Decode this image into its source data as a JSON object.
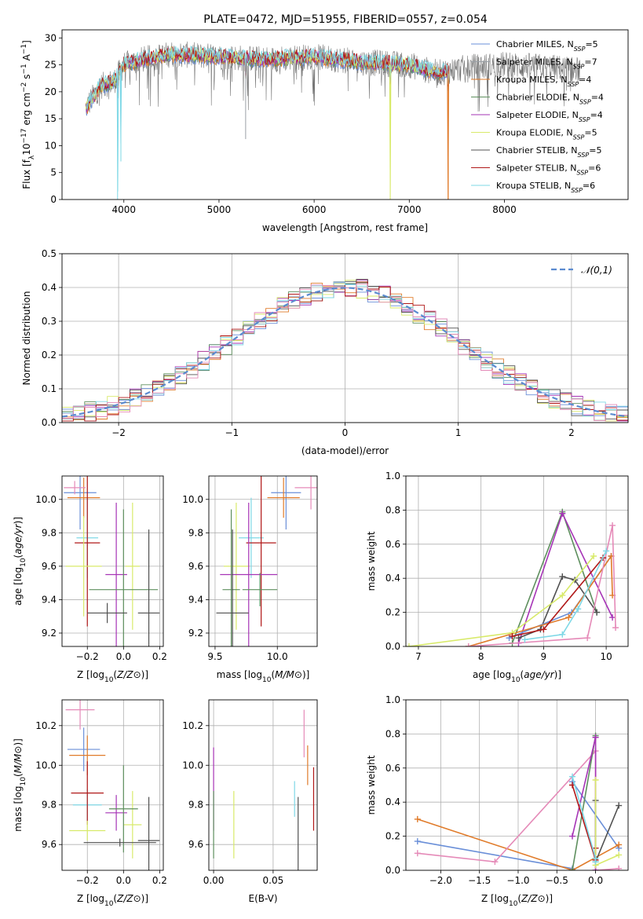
{
  "title": "PLATE=0472, MJD=51955, FIBERID=0557, z=0.054",
  "colors": {
    "Chabrier MILES": "#6a8fd8",
    "Salpeter MILES": "#9aa0a6",
    "Kroupa MILES": "#e07b2a",
    "Chabrier ELODIE": "#5e8f5e",
    "Salpeter ELODIE": "#a634b6",
    "Kroupa ELODIE": "#d8ea6a",
    "Chabrier STELIB": "#505050",
    "Salpeter STELIB": "#b01818",
    "Kroupa STELIB": "#7fd8e6",
    "pink": "#e58ab8",
    "normal": "#5b8bd0",
    "grid": "#b0b0b0"
  },
  "chart_data": [
    {
      "type": "line",
      "panel": "spectrum",
      "title": "PLATE=0472, MJD=51955, FIBERID=0557, z=0.054",
      "xlabel": "wavelength [Angstrom, rest frame]",
      "ylabel_parts": {
        "a": "Flux [f",
        "sub1": "λ",
        "b": "10",
        "sup1": "−17",
        "c": " erg cm",
        "sup2": "−2",
        "d": " s",
        "sup3": "−1",
        "e": " A",
        "sup4": "−1",
        "f": "]"
      },
      "xlim": [
        3350,
        9300
      ],
      "ylim": [
        0,
        31.5
      ],
      "xticks": [
        4000,
        5000,
        6000,
        7000,
        8000
      ],
      "yticks": [
        0,
        5,
        10,
        15,
        20,
        25,
        30
      ],
      "legend_position": "upper right",
      "legend": [
        {
          "name": "Chabrier MILES",
          "nssp": "5"
        },
        {
          "name": "Salpeter MILES",
          "nssp": "7"
        },
        {
          "name": "Kroupa MILES",
          "nssp": "4"
        },
        {
          "name": "Chabrier ELODIE",
          "nssp": "4"
        },
        {
          "name": "Salpeter ELODIE",
          "nssp": "4"
        },
        {
          "name": "Kroupa ELODIE",
          "nssp": "5"
        },
        {
          "name": "Chabrier STELIB",
          "nssp": "5"
        },
        {
          "name": "Salpeter STELIB",
          "nssp": "6"
        },
        {
          "name": "Kroupa STELIB",
          "nssp": "6"
        }
      ],
      "continuum": {
        "x": [
          3600,
          3750,
          3900,
          4000,
          4200,
          4500,
          5000,
          5500,
          6000,
          6500,
          7000,
          7300,
          7600,
          8000,
          8500,
          8800
        ],
        "y": [
          17,
          21,
          22,
          25,
          26,
          27,
          26.5,
          26,
          26.5,
          25.5,
          25,
          23.5,
          24.5,
          25,
          24.5,
          24
        ]
      },
      "model_range": [
        3600,
        7420
      ],
      "absorption_lines": [
        {
          "x": 3934,
          "depth": 22,
          "series": "Kroupa STELIB"
        },
        {
          "x": 3969,
          "depth": 14,
          "series": "Kroupa STELIB"
        },
        {
          "x": 5280,
          "depth": 12,
          "series": "Salpeter MILES"
        },
        {
          "x": 6800,
          "depth": 26,
          "series": "Kroupa ELODIE"
        },
        {
          "x": 7410,
          "depth": 24,
          "series": "Kroupa MILES"
        }
      ]
    },
    {
      "type": "line",
      "panel": "residual-histogram",
      "xlabel": "(data-model)/error",
      "ylabel": "Normed distribution",
      "xlim": [
        -2.5,
        2.5
      ],
      "ylim": [
        0,
        0.5
      ],
      "xticks": [
        -2,
        -1,
        0,
        1,
        2
      ],
      "yticks": [
        0.0,
        0.1,
        0.2,
        0.3,
        0.4,
        0.5
      ],
      "grid": true,
      "bin_width": 0.1,
      "reference": {
        "name": "𝒩(0,1)",
        "mean": 0,
        "sigma": 1
      },
      "legend_position": "upper right"
    },
    {
      "type": "scatter",
      "panel": "age-vs-Z",
      "xlabel": "Z [log10(Z/Z⊙)]",
      "ylabel": "age [log10(age/yr)]",
      "xlim": [
        -0.34,
        0.22
      ],
      "ylim": [
        9.12,
        10.14
      ],
      "xticks": [
        -0.2,
        0.0,
        0.2
      ],
      "yticks": [
        9.2,
        9.4,
        9.6,
        9.8,
        10.0
      ],
      "points": [
        {
          "s": "Chabrier MILES",
          "x": -0.24,
          "y": 10.04,
          "ex": 0.09,
          "ey": 0.22
        },
        {
          "s": "Kroupa MILES",
          "x": -0.22,
          "y": 10.01,
          "ex": 0.09,
          "ey": 0.12
        },
        {
          "s": "pink",
          "x": -0.27,
          "y": 10.07,
          "ex": 0.06,
          "ey": 0.04
        },
        {
          "s": "Kroupa STELIB",
          "x": -0.2,
          "y": 9.77,
          "ex": 0.06,
          "ey": 0.24
        },
        {
          "s": "Salpeter STELIB",
          "x": -0.2,
          "y": 9.74,
          "ex": 0.07,
          "ey": 0.5
        },
        {
          "s": "Kroupa ELODIE",
          "x": -0.22,
          "y": 9.6,
          "ex": 0.1,
          "ey": 0.3
        },
        {
          "s": "Kroupa ELODIE",
          "x": 0.05,
          "y": 9.6,
          "ex": 0.04,
          "ey": 0.38
        },
        {
          "s": "Salpeter ELODIE",
          "x": -0.04,
          "y": 9.55,
          "ex": 0.06,
          "ey": 0.43
        },
        {
          "s": "Chabrier ELODIE",
          "x": 0.0,
          "y": 9.46,
          "ex": 0.19,
          "ey": 0.48
        },
        {
          "s": "Chabrier STELIB",
          "x": 0.14,
          "y": 9.32,
          "ex": 0.06,
          "ey": 0.5
        },
        {
          "s": "Chabrier STELIB",
          "x": -0.09,
          "y": 9.32,
          "ex": 0.11,
          "ey": 0.06
        }
      ]
    },
    {
      "type": "scatter",
      "panel": "age-vs-mass",
      "xlabel": "mass [log10(M/M⊙)]",
      "xlim": [
        9.45,
        10.32
      ],
      "ylim": [
        9.12,
        10.14
      ],
      "xticks": [
        9.5,
        10.0
      ],
      "yticks": [
        9.2,
        9.4,
        9.6,
        9.8,
        10.0
      ],
      "points": [
        {
          "s": "Chabrier MILES",
          "x": 10.07,
          "y": 10.04,
          "ex": 0.12,
          "ey": 0.22
        },
        {
          "s": "Kroupa MILES",
          "x": 10.05,
          "y": 10.01,
          "ex": 0.13,
          "ey": 0.12
        },
        {
          "s": "pink",
          "x": 10.27,
          "y": 10.07,
          "ex": 0.13,
          "ey": 0.13
        },
        {
          "s": "Kroupa STELIB",
          "x": 9.79,
          "y": 9.77,
          "ex": 0.1,
          "ey": 0.24
        },
        {
          "s": "Salpeter STELIB",
          "x": 9.87,
          "y": 9.74,
          "ex": 0.12,
          "ey": 0.5
        },
        {
          "s": "Kroupa ELODIE",
          "x": 9.67,
          "y": 9.6,
          "ex": 0.1,
          "ey": 0.38
        },
        {
          "s": "Salpeter ELODIE",
          "x": 9.77,
          "y": 9.55,
          "ex": 0.23,
          "ey": 0.43
        },
        {
          "s": "Chabrier ELODIE",
          "x": 9.63,
          "y": 9.46,
          "ex": 0.07,
          "ey": 0.48
        },
        {
          "s": "Chabrier ELODIE",
          "x": 9.86,
          "y": 9.46,
          "ex": 0.14,
          "ey": 0.1
        },
        {
          "s": "Chabrier STELIB",
          "x": 9.64,
          "y": 9.32,
          "ex": 0.13,
          "ey": 0.5
        }
      ]
    },
    {
      "type": "line",
      "panel": "mass-weight-vs-age",
      "xlabel": "age [log10(age/yr)]",
      "ylabel": "mass weight",
      "xlim": [
        6.8,
        10.35
      ],
      "ylim": [
        0,
        1
      ],
      "xticks": [
        7,
        8,
        9,
        10
      ],
      "yticks": [
        0.0,
        0.2,
        0.4,
        0.6,
        0.8,
        1.0
      ],
      "grid": true,
      "series": [
        {
          "name": "Chabrier ELODIE",
          "x": [
            8.5,
            9.3,
            9.85
          ],
          "y": [
            0.02,
            0.79,
            0.2
          ]
        },
        {
          "name": "Salpeter ELODIE",
          "x": [
            8.6,
            9.3,
            10.1
          ],
          "y": [
            0.02,
            0.78,
            0.17
          ]
        },
        {
          "name": "Chabrier STELIB",
          "x": [
            8.6,
            8.95,
            9.3,
            9.5,
            9.85
          ],
          "y": [
            0.05,
            0.1,
            0.41,
            0.39,
            0.2
          ]
        },
        {
          "name": "Chabrier MILES",
          "x": [
            8.45,
            9.45,
            10.08
          ],
          "y": [
            0.05,
            0.2,
            0.53
          ]
        },
        {
          "name": "Kroupa MILES",
          "x": [
            7.8,
            9.4,
            10.08,
            10.1
          ],
          "y": [
            0.0,
            0.17,
            0.53,
            0.3
          ]
        },
        {
          "name": "pink",
          "x": [
            7.8,
            9.7,
            10.1,
            10.15
          ],
          "y": [
            0.0,
            0.05,
            0.71,
            0.11
          ]
        },
        {
          "name": "Kroupa ELODIE",
          "x": [
            6.85,
            8.5,
            9.3,
            9.8
          ],
          "y": [
            0.0,
            0.08,
            0.3,
            0.53
          ]
        },
        {
          "name": "Salpeter STELIB",
          "x": [
            8.5,
            9.0,
            9.95
          ],
          "y": [
            0.06,
            0.1,
            0.52
          ]
        },
        {
          "name": "Kroupa STELIB",
          "x": [
            8.7,
            9.3,
            9.55,
            10.0
          ],
          "y": [
            0.04,
            0.07,
            0.22,
            0.56
          ]
        }
      ]
    },
    {
      "type": "scatter",
      "panel": "mass-vs-Z",
      "xlabel": "Z [log10(Z/Z⊙)]",
      "ylabel": "mass [log10(M/M⊙)]",
      "xlim": [
        -0.34,
        0.22
      ],
      "ylim": [
        9.47,
        10.33
      ],
      "xticks": [
        -0.2,
        0.0,
        0.2
      ],
      "yticks": [
        9.6,
        9.8,
        10.0,
        10.2
      ],
      "points": [
        {
          "s": "pink",
          "x": -0.24,
          "y": 10.28,
          "ex": 0.08,
          "ey": 0.1
        },
        {
          "s": "Chabrier MILES",
          "x": -0.22,
          "y": 10.08,
          "ex": 0.09,
          "ey": 0.11
        },
        {
          "s": "Kroupa MILES",
          "x": -0.2,
          "y": 10.05,
          "ex": 0.1,
          "ey": 0.1
        },
        {
          "s": "Kroupa STELIB",
          "x": -0.2,
          "y": 9.8,
          "ex": 0.08,
          "ey": 0.08
        },
        {
          "s": "Salpeter STELIB",
          "x": -0.2,
          "y": 9.86,
          "ex": 0.09,
          "ey": 0.16
        },
        {
          "s": "Salpeter ELODIE",
          "x": -0.04,
          "y": 9.76,
          "ex": 0.06,
          "ey": 0.09
        },
        {
          "s": "Kroupa ELODIE",
          "x": -0.2,
          "y": 9.67,
          "ex": 0.1,
          "ey": 0.05
        },
        {
          "s": "Kroupa ELODIE",
          "x": 0.05,
          "y": 9.7,
          "ex": 0.05,
          "ey": 0.17
        },
        {
          "s": "Chabrier ELODIE",
          "x": 0.0,
          "y": 9.78,
          "ex": 0.08,
          "ey": 0.22
        },
        {
          "s": "Chabrier STELIB",
          "x": 0.14,
          "y": 9.62,
          "ex": 0.06,
          "ey": 0.22
        },
        {
          "s": "Chabrier STELIB",
          "x": -0.02,
          "y": 9.61,
          "ex": 0.2,
          "ey": 0.02
        }
      ]
    },
    {
      "type": "scatter",
      "panel": "mass-vs-EBV",
      "xlabel": "E(B-V)",
      "xlim": [
        -0.004,
        0.087
      ],
      "ylim": [
        9.47,
        10.33
      ],
      "xticks": [
        0.0,
        0.05
      ],
      "yticks": [
        9.6,
        9.8,
        10.0,
        10.2
      ],
      "points": [
        {
          "s": "Salpeter ELODIE",
          "x": 0.0,
          "y": 9.88,
          "ey": 0.21
        },
        {
          "s": "Chabrier ELODIE",
          "x": 0.0,
          "y": 9.7,
          "ey": 0.17
        },
        {
          "s": "Kroupa ELODIE",
          "x": 0.017,
          "y": 9.7,
          "ey": 0.17
        },
        {
          "s": "Kroupa STELIB",
          "x": 0.068,
          "y": 9.83,
          "ey": 0.09
        },
        {
          "s": "Chabrier STELIB",
          "x": 0.071,
          "y": 9.62,
          "ey": 0.22
        },
        {
          "s": "pink",
          "x": 0.076,
          "y": 10.16,
          "ey": 0.12
        },
        {
          "s": "Kroupa MILES",
          "x": 0.079,
          "y": 10.0,
          "ey": 0.1
        },
        {
          "s": "Salpeter STELIB",
          "x": 0.084,
          "y": 9.83,
          "ey": 0.16
        }
      ]
    },
    {
      "type": "line",
      "panel": "mass-weight-vs-Z",
      "xlabel": "Z [log10(Z/Z⊙)]",
      "ylabel": "mass weight",
      "xlim": [
        -2.45,
        0.42
      ],
      "ylim": [
        0,
        1
      ],
      "xticks": [
        -2.0,
        -1.5,
        -1.0,
        -0.5,
        0.0
      ],
      "yticks": [
        0.0,
        0.2,
        0.4,
        0.6,
        0.8,
        1.0
      ],
      "grid": true,
      "series": [
        {
          "name": "Chabrier MILES",
          "x": [
            -2.3,
            -0.3
          ],
          "y": [
            0.17,
            0.01
          ]
        },
        {
          "name": "Chabrier MILES",
          "x": [
            -0.3,
            0.3
          ],
          "y": [
            0.52,
            0.13
          ]
        },
        {
          "name": "Kroupa MILES",
          "x": [
            -2.3,
            -0.3,
            0.3
          ],
          "y": [
            0.3,
            0.0,
            0.15
          ]
        },
        {
          "name": "pink",
          "x": [
            -2.3,
            -1.3,
            0.0,
            0.0,
            0.3
          ],
          "y": [
            0.1,
            0.05,
            0.7,
            0.0,
            0.01
          ]
        },
        {
          "name": "Chabrier ELODIE",
          "x": [
            -0.3,
            0.0
          ],
          "y": [
            0.0,
            0.79
          ]
        },
        {
          "name": "Salpeter ELODIE",
          "x": [
            -0.3,
            0.0,
            0.0
          ],
          "y": [
            0.2,
            0.78,
            0.0
          ]
        },
        {
          "name": "Chabrier STELIB",
          "x": [
            0.0,
            0.0,
            0.3
          ],
          "y": [
            0.41,
            0.05,
            0.38
          ]
        },
        {
          "name": "Salpeter STELIB",
          "x": [
            -0.3,
            0.0,
            0.0
          ],
          "y": [
            0.5,
            0.06,
            0.13
          ]
        },
        {
          "name": "Kroupa ELODIE",
          "x": [
            0.0,
            0.0,
            0.3
          ],
          "y": [
            0.53,
            0.03,
            0.09
          ]
        },
        {
          "name": "Kroupa STELIB",
          "x": [
            -0.3,
            0.0,
            0.0
          ],
          "y": [
            0.55,
            0.07,
            0.05
          ]
        }
      ]
    }
  ]
}
